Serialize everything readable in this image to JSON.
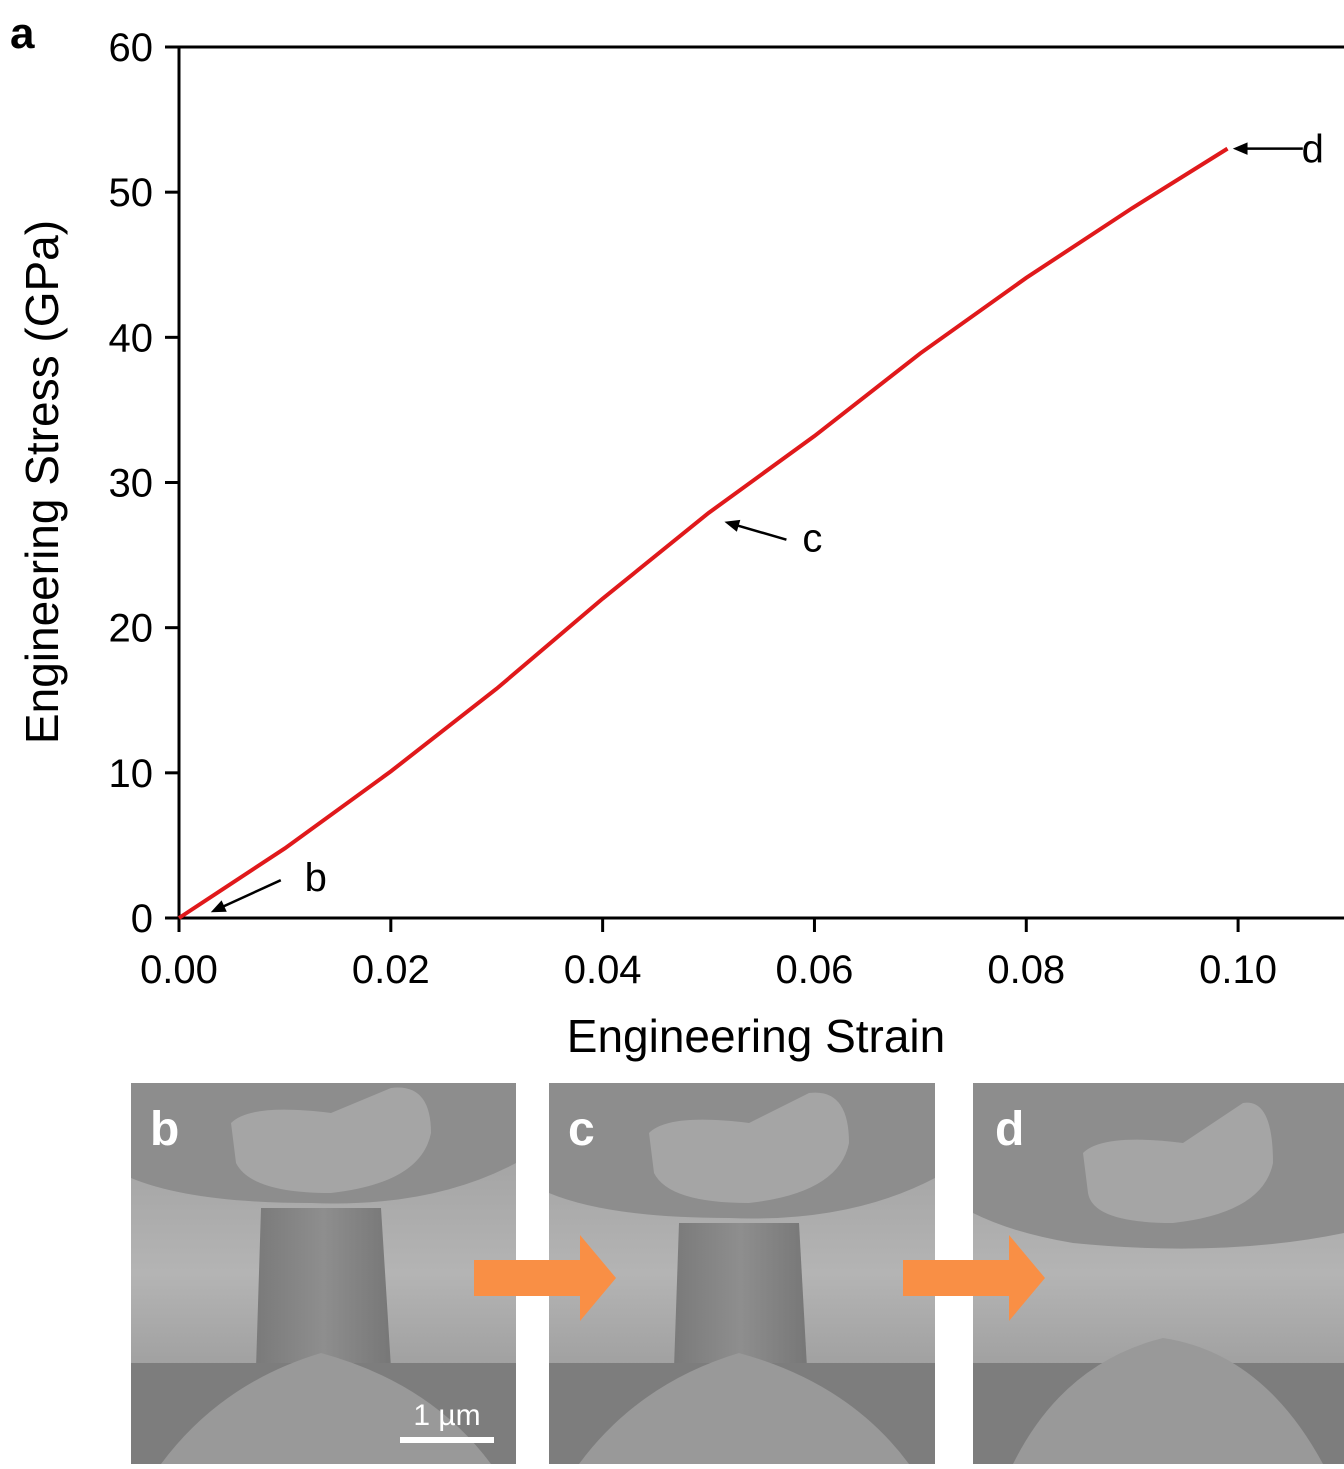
{
  "chart_data": {
    "type": "line",
    "panel_label": "a",
    "x_label": "Engineering Strain",
    "y_label": "Engineering Stress (GPa)",
    "x": [
      0,
      0.01,
      0.02,
      0.03,
      0.04,
      0.05,
      0.06,
      0.07,
      0.08,
      0.09,
      0.099
    ],
    "values": [
      0,
      4.8,
      10.1,
      15.8,
      22.0,
      27.9,
      33.2,
      38.9,
      44.1,
      48.9,
      53.0
    ],
    "color": "#e0191b",
    "xlim": [
      0,
      0.11
    ],
    "ylim": [
      0,
      60
    ],
    "xticks": [
      {
        "value": 0,
        "label": "0.00"
      },
      {
        "value": 0.02,
        "label": "0.02"
      },
      {
        "value": 0.04,
        "label": "0.04"
      },
      {
        "value": 0.06,
        "label": "0.06"
      },
      {
        "value": 0.08,
        "label": "0.08"
      },
      {
        "value": 0.1,
        "label": "0.10"
      }
    ],
    "yticks": [
      0,
      10,
      20,
      30,
      40,
      50,
      60
    ],
    "annotations": [
      {
        "text": "b",
        "x": 0.003,
        "y": 0.4
      },
      {
        "text": "c",
        "x": 0.0515,
        "y": 27.3
      },
      {
        "text": "d",
        "x": 0.0995,
        "y": 53.0
      }
    ]
  },
  "figure": {
    "panels": [
      {
        "label": "b"
      },
      {
        "label": "c"
      },
      {
        "label": "d"
      }
    ],
    "scale_bar": "1 µm"
  }
}
